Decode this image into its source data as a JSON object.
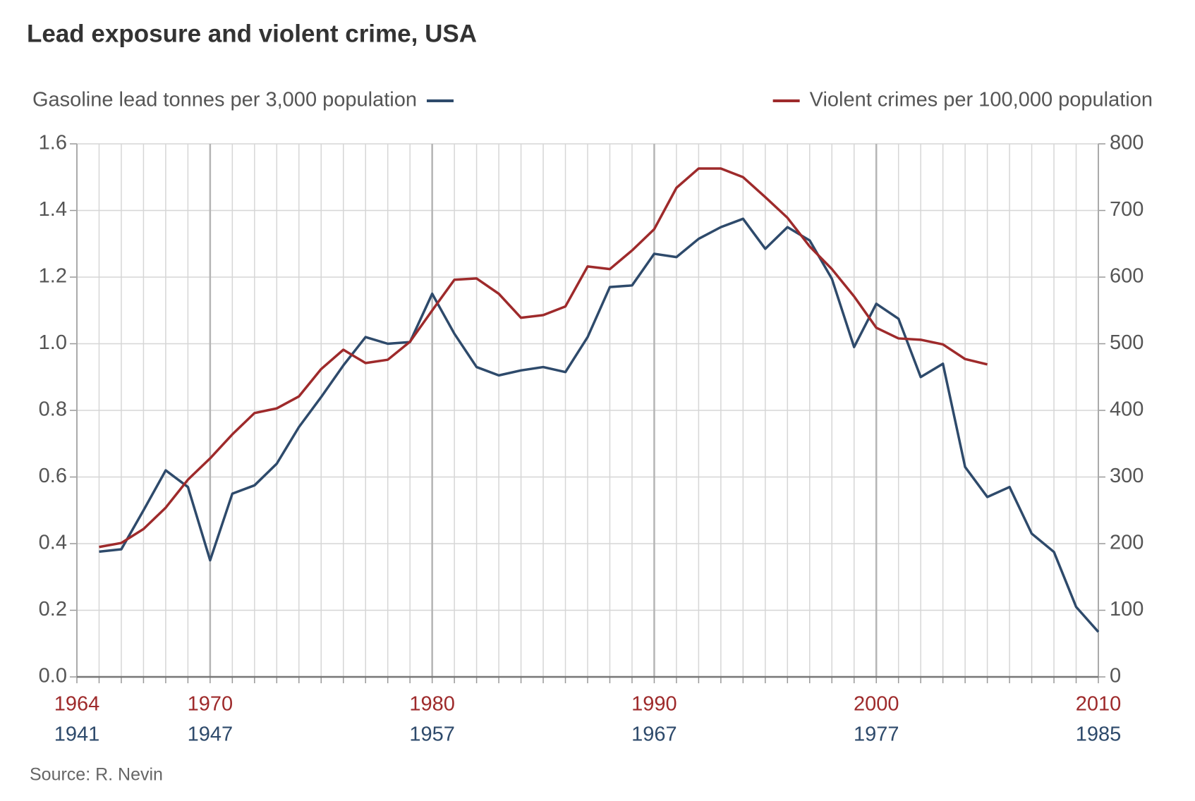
{
  "chart_data": {
    "type": "line",
    "title": "Lead exposure and violent crime, USA",
    "source": "Source: R. Nevin",
    "xlim": [
      1964,
      2010
    ],
    "xticks": [
      1964,
      1970,
      1980,
      1990,
      2000,
      2010
    ],
    "x2ticks": [
      1941,
      1947,
      1957,
      1967,
      1977,
      1985
    ],
    "xminorticks": [
      1964,
      1965,
      1966,
      1967,
      1968,
      1969,
      1970,
      1971,
      1972,
      1973,
      1974,
      1975,
      1976,
      1977,
      1978,
      1979,
      1980,
      1981,
      1982,
      1983,
      1984,
      1985,
      1986,
      1987,
      1988,
      1989,
      1990,
      1991,
      1992,
      1993,
      1994,
      1995,
      1996,
      1997,
      1998,
      1999,
      2000,
      2001,
      2002,
      2003,
      2004,
      2005,
      2006,
      2007,
      2008,
      2009,
      2010
    ],
    "ylim": [
      0,
      1.6
    ],
    "yticks": [
      {
        "value": 0,
        "label": "0.0"
      },
      0.2,
      0.4,
      0.6,
      0.8,
      {
        "value": 1,
        "label": "1.0"
      },
      1.2,
      1.4,
      1.6
    ],
    "y2lim": [
      0,
      800
    ],
    "y2ticks": [
      0,
      100,
      200,
      300,
      400,
      500,
      600,
      700,
      800
    ],
    "grid": true,
    "series": [
      {
        "name": "Gasoline lead tonnes per 3,000 population",
        "color": "#2e4a6b",
        "axis": "y",
        "x": [
          1965,
          1966,
          1967,
          1968,
          1969,
          1970,
          1971,
          1972,
          1973,
          1974,
          1975,
          1976,
          1977,
          1978,
          1979,
          1980,
          1981,
          1982,
          1983,
          1984,
          1985,
          1986,
          1987,
          1988,
          1989,
          1990,
          1991,
          1992,
          1993,
          1994,
          1995,
          1996,
          1997,
          1998,
          1999,
          2000,
          2001,
          2002,
          2003,
          2004,
          2005,
          2006,
          2007,
          2008,
          2009,
          2010
        ],
        "values": [
          0.376,
          0.383,
          0.5,
          0.62,
          0.57,
          0.35,
          0.55,
          0.575,
          0.64,
          0.75,
          0.84,
          0.935,
          1.02,
          1.0,
          1.005,
          1.15,
          1.03,
          0.93,
          0.905,
          0.92,
          0.93,
          0.915,
          1.02,
          1.17,
          1.175,
          1.27,
          1.26,
          1.315,
          1.35,
          1.375,
          1.285,
          1.35,
          1.31,
          1.195,
          0.99,
          1.12,
          1.075,
          0.9,
          0.94,
          0.63,
          0.54,
          0.57,
          0.43,
          0.375,
          0.21,
          0.135
        ]
      },
      {
        "name": "Violent crimes per 100,000 population",
        "color": "#9e2a2b",
        "axis": "y2",
        "x": [
          1965,
          1966,
          1967,
          1968,
          1969,
          1970,
          1971,
          1972,
          1973,
          1974,
          1975,
          1976,
          1977,
          1978,
          1979,
          1980,
          1981,
          1982,
          1983,
          1984,
          1985,
          1986,
          1987,
          1988,
          1989,
          1990,
          1991,
          1992,
          1993,
          1994,
          1995,
          1996,
          1997,
          1998,
          1999,
          2000,
          2001,
          2002,
          2003,
          2004,
          2005
        ],
        "values": [
          195,
          201,
          222,
          254,
          296,
          328,
          364,
          396,
          403,
          421,
          462,
          491,
          471,
          476,
          503,
          550,
          596,
          598,
          575,
          539,
          543,
          556,
          616,
          612,
          640,
          672,
          734,
          763,
          763,
          750,
          720,
          689,
          646,
          612,
          571,
          524,
          508,
          506,
          499,
          477,
          469
        ]
      }
    ]
  }
}
